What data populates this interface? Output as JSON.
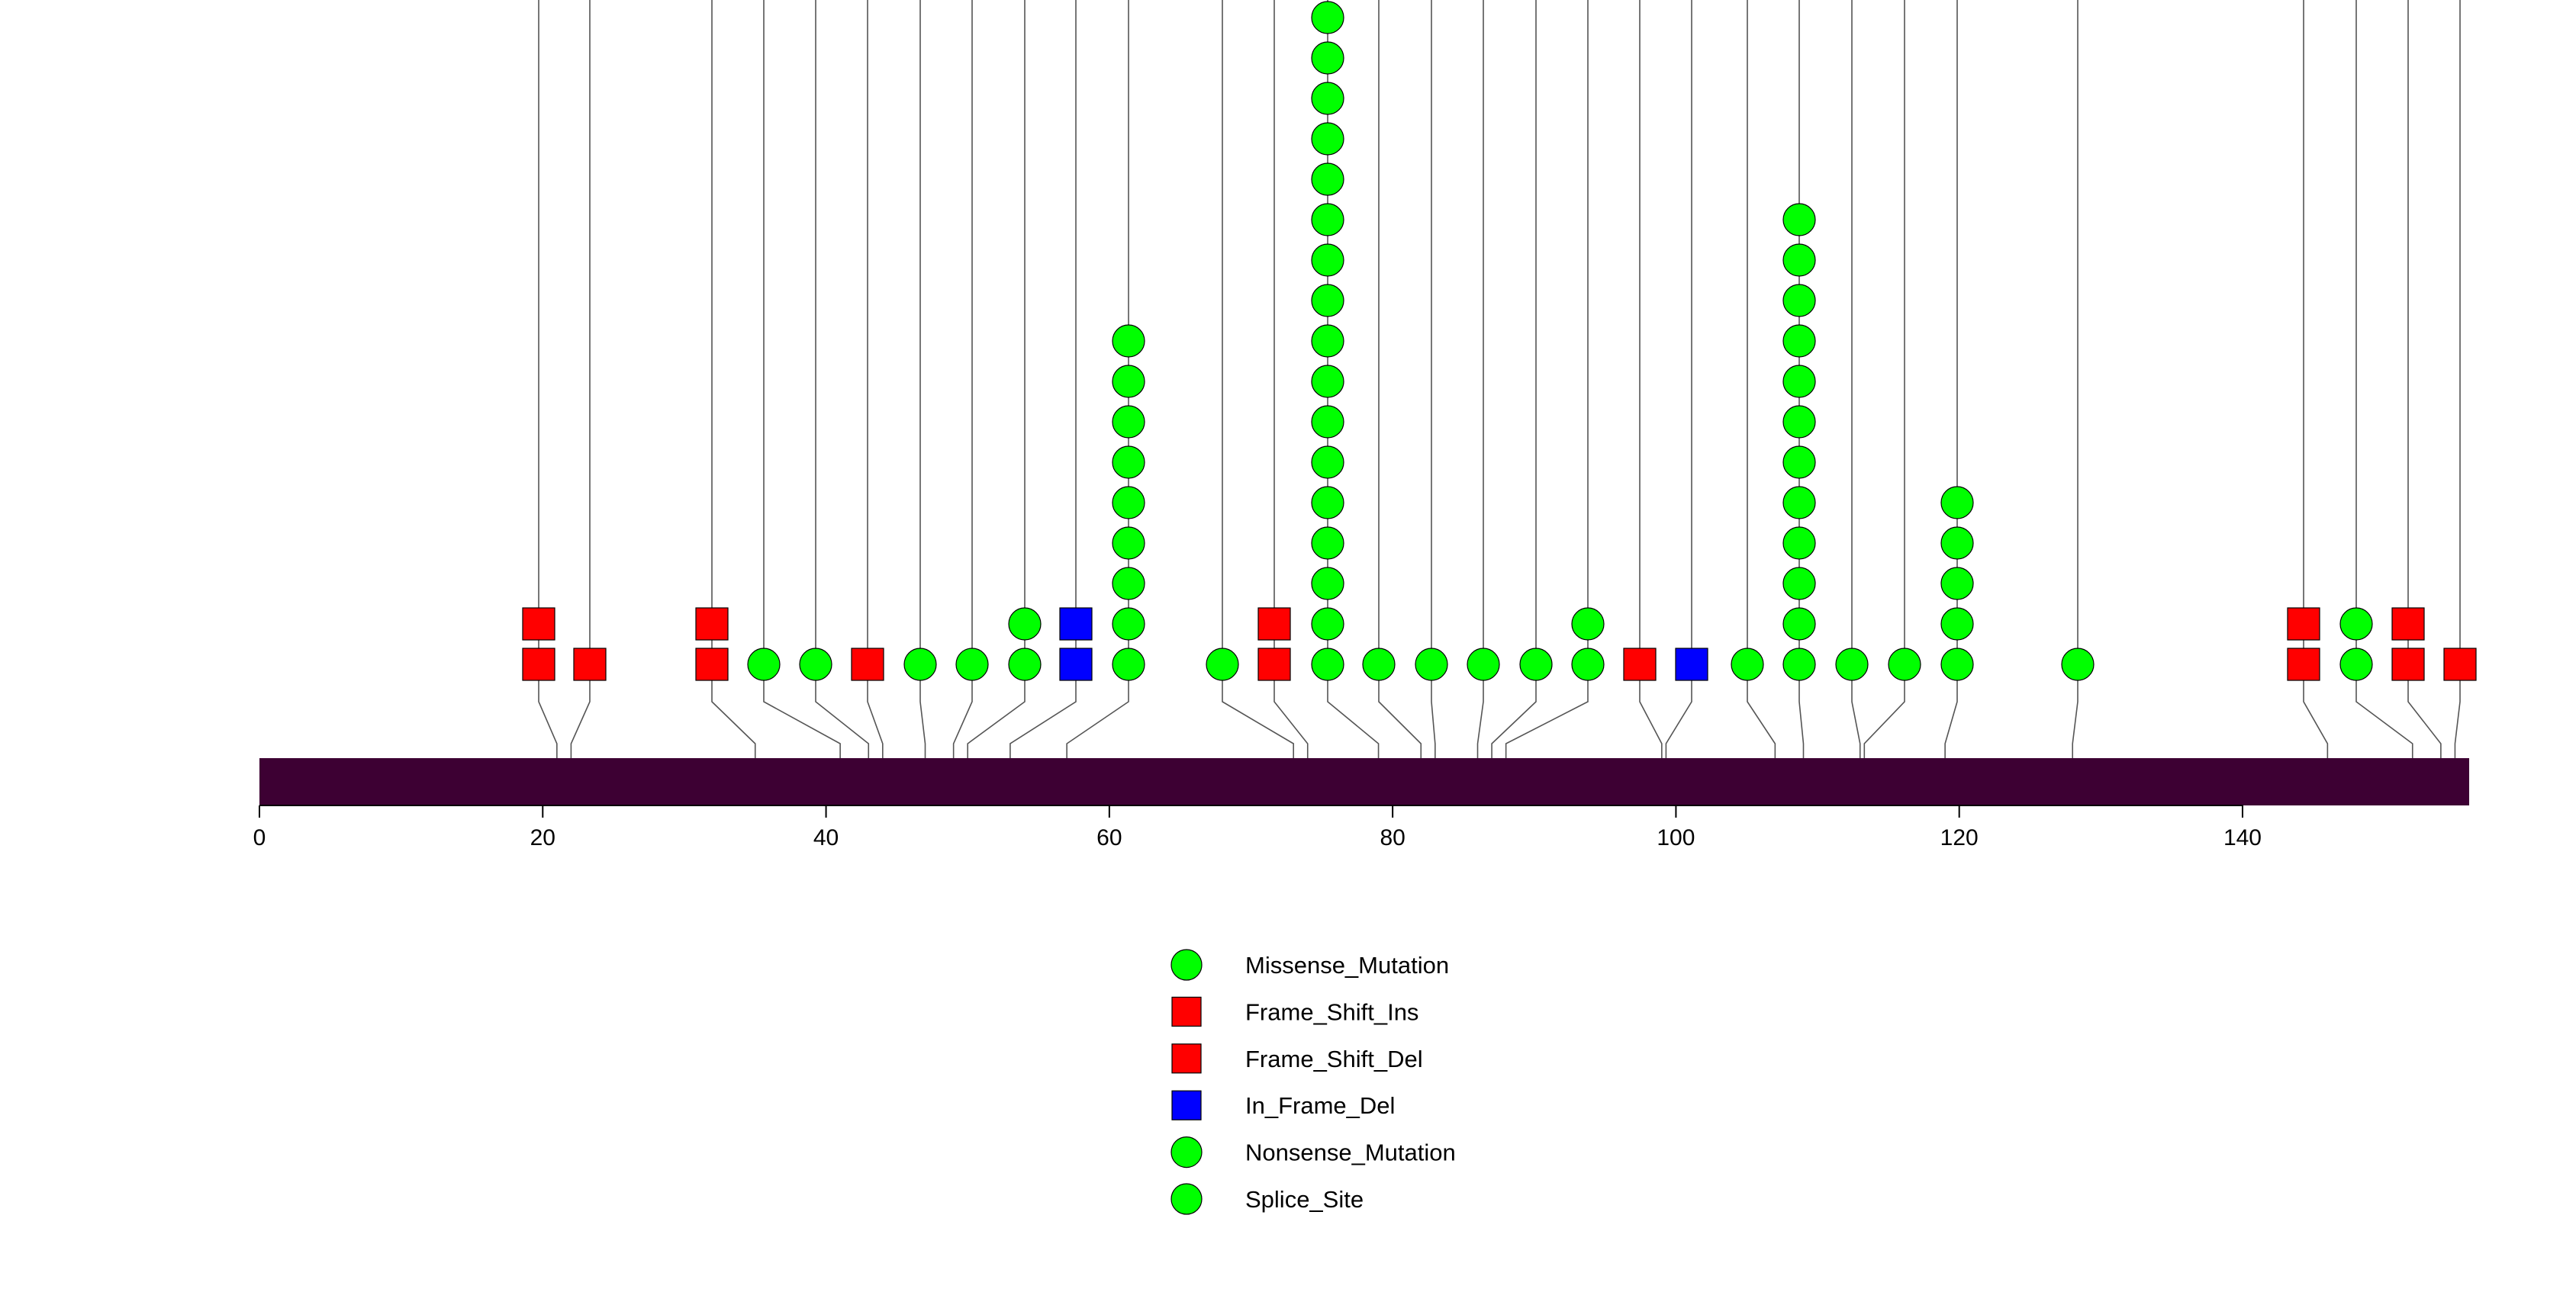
{
  "chart_data": {
    "type": "lollipop",
    "title": "",
    "xlabel": "",
    "ylabel": "",
    "xlim": [
      0,
      156
    ],
    "x_ticks": [
      "0",
      "20",
      "40",
      "60",
      "80",
      "100",
      "120",
      "140"
    ],
    "protein_bar_color": "#3d0033",
    "categories": [
      {
        "name": "Missense_Mutation",
        "shape": "circle",
        "color": "#00ff00"
      },
      {
        "name": "Frame_Shift_Ins",
        "shape": "square",
        "color": "#ff0000"
      },
      {
        "name": "Frame_Shift_Del",
        "shape": "square",
        "color": "#ff0000"
      },
      {
        "name": "In_Frame_Del",
        "shape": "square",
        "color": "#0000ff"
      },
      {
        "name": "Nonsense_Mutation",
        "shape": "circle",
        "color": "#00ff00"
      },
      {
        "name": "Splice_Site",
        "shape": "circle",
        "color": "#00ff00"
      }
    ],
    "mutations": [
      {
        "position": 21,
        "count": 2,
        "marks": [
          "square-red",
          "square-red"
        ]
      },
      {
        "position": 22,
        "count": 1,
        "marks": [
          "square-red"
        ]
      },
      {
        "position": 35,
        "count": 2,
        "marks": [
          "square-red",
          "square-red"
        ]
      },
      {
        "position": 41,
        "count": 1,
        "marks": [
          "circle-green"
        ]
      },
      {
        "position": 43,
        "count": 1,
        "marks": [
          "circle-green"
        ]
      },
      {
        "position": 44,
        "count": 1,
        "marks": [
          "square-red"
        ]
      },
      {
        "position": 47,
        "count": 1,
        "marks": [
          "circle-green"
        ]
      },
      {
        "position": 49,
        "count": 1,
        "marks": [
          "circle-green"
        ]
      },
      {
        "position": 50,
        "count": 2,
        "marks": [
          "circle-green",
          "circle-green"
        ]
      },
      {
        "position": 53,
        "count": 2,
        "marks": [
          "square-blue",
          "square-blue"
        ]
      },
      {
        "position": 57,
        "count": 9,
        "marks": [
          "circle-green",
          "circle-green",
          "circle-green",
          "circle-green",
          "circle-green",
          "circle-green",
          "circle-green",
          "circle-green",
          "circle-green"
        ]
      },
      {
        "position": 73,
        "count": 1,
        "marks": [
          "circle-green"
        ]
      },
      {
        "position": 74,
        "count": 2,
        "marks": [
          "square-red",
          "square-red"
        ]
      },
      {
        "position": 79,
        "count": 17,
        "marks": [
          "circle-green",
          "circle-green",
          "circle-green",
          "circle-green",
          "circle-green",
          "circle-green",
          "circle-green",
          "circle-green",
          "circle-green",
          "circle-green",
          "circle-green",
          "circle-green",
          "circle-green",
          "circle-green",
          "circle-green",
          "circle-green",
          "circle-green"
        ]
      },
      {
        "position": 82,
        "count": 1,
        "marks": [
          "circle-green"
        ]
      },
      {
        "position": 83,
        "count": 1,
        "marks": [
          "circle-green"
        ]
      },
      {
        "position": 86,
        "count": 1,
        "marks": [
          "circle-green"
        ]
      },
      {
        "position": 87,
        "count": 1,
        "marks": [
          "circle-green"
        ]
      },
      {
        "position": 88,
        "count": 2,
        "marks": [
          "circle-green",
          "circle-green"
        ]
      },
      {
        "position": 99,
        "count": 1,
        "marks": [
          "square-red"
        ]
      },
      {
        "position": 99.3,
        "count": 1,
        "marks": [
          "square-blue"
        ]
      },
      {
        "position": 107,
        "count": 1,
        "marks": [
          "circle-green"
        ]
      },
      {
        "position": 109,
        "count": 12,
        "marks": [
          "circle-green",
          "circle-green",
          "circle-green",
          "circle-green",
          "circle-green",
          "circle-green",
          "circle-green",
          "circle-green",
          "circle-green",
          "circle-green",
          "circle-green",
          "circle-green"
        ]
      },
      {
        "position": 113,
        "count": 1,
        "marks": [
          "circle-green"
        ]
      },
      {
        "position": 113.3,
        "count": 1,
        "marks": [
          "circle-green"
        ]
      },
      {
        "position": 119,
        "count": 5,
        "marks": [
          "circle-green",
          "circle-green",
          "circle-green",
          "circle-green",
          "circle-green"
        ]
      },
      {
        "position": 128,
        "count": 1,
        "marks": [
          "circle-green"
        ]
      },
      {
        "position": 146,
        "count": 2,
        "marks": [
          "square-red",
          "square-red"
        ]
      },
      {
        "position": 152,
        "count": 2,
        "marks": [
          "circle-green",
          "circle-green"
        ]
      },
      {
        "position": 154,
        "count": 2,
        "marks": [
          "square-red",
          "square-red"
        ]
      },
      {
        "position": 155,
        "count": 1,
        "marks": [
          "square-red"
        ]
      }
    ]
  },
  "legend": {
    "items": [
      {
        "label": "Missense_Mutation",
        "shape": "circle",
        "color": "#00ff00"
      },
      {
        "label": "Frame_Shift_Ins",
        "shape": "square",
        "color": "#ff0000"
      },
      {
        "label": "Frame_Shift_Del",
        "shape": "square",
        "color": "#ff0000"
      },
      {
        "label": "In_Frame_Del",
        "shape": "square",
        "color": "#0000ff"
      },
      {
        "label": "Nonsense_Mutation",
        "shape": "circle",
        "color": "#00ff00"
      },
      {
        "label": "Splice_Site",
        "shape": "circle",
        "color": "#00ff00"
      }
    ]
  }
}
